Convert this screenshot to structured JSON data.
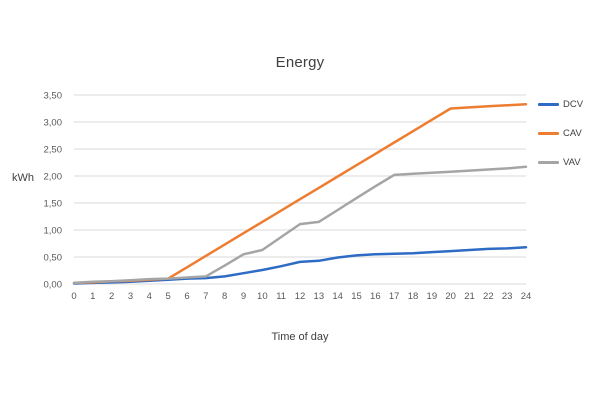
{
  "chart": {
    "title": "Energy",
    "y_axis_label": "kWh",
    "x_axis_label": "Time of day"
  },
  "chart_data": {
    "type": "line",
    "title": "Energy",
    "xlabel": "Time of day",
    "ylabel": "kWh",
    "xlim": [
      0,
      24
    ],
    "ylim": [
      0,
      3.5
    ],
    "grid": "horizontal",
    "legend_position": "right",
    "gridline_color": "#D9D9D9",
    "tick_label_color": "#595959",
    "x": [
      0,
      1,
      2,
      3,
      4,
      5,
      6,
      7,
      8,
      9,
      10,
      11,
      12,
      13,
      14,
      15,
      16,
      17,
      18,
      19,
      20,
      21,
      22,
      23,
      24
    ],
    "x_tick_labels": [
      "0",
      "1",
      "2",
      "3",
      "4",
      "5",
      "6",
      "7",
      "8",
      "9",
      "10",
      "11",
      "12",
      "13",
      "14",
      "15",
      "16",
      "17",
      "18",
      "19",
      "20",
      "21",
      "22",
      "23",
      "24"
    ],
    "y_ticks": [
      0,
      0.5,
      1.0,
      1.5,
      2.0,
      2.5,
      3.0,
      3.5
    ],
    "y_tick_labels": [
      "0,00",
      "0,50",
      "1,00",
      "1,50",
      "2,00",
      "2,50",
      "3,00",
      "3,50"
    ],
    "series": [
      {
        "name": "DCV",
        "color": "#2E6BC4",
        "values": [
          0.01,
          0.02,
          0.03,
          0.04,
          0.06,
          0.08,
          0.1,
          0.11,
          0.14,
          0.2,
          0.26,
          0.33,
          0.41,
          0.43,
          0.49,
          0.53,
          0.55,
          0.56,
          0.57,
          0.59,
          0.61,
          0.63,
          0.65,
          0.66,
          0.68
        ]
      },
      {
        "name": "CAV",
        "color": "#ED7D31",
        "values": [
          0.02,
          0.03,
          0.05,
          0.06,
          0.08,
          0.1,
          0.31,
          0.52,
          0.73,
          0.94,
          1.15,
          1.36,
          1.57,
          1.78,
          1.99,
          2.2,
          2.41,
          2.62,
          2.83,
          3.04,
          3.25,
          3.27,
          3.29,
          3.31,
          3.33
        ]
      },
      {
        "name": "VAV",
        "color": "#A5A5A5",
        "values": [
          0.02,
          0.04,
          0.05,
          0.07,
          0.09,
          0.1,
          0.12,
          0.14,
          0.34,
          0.55,
          0.63,
          0.87,
          1.11,
          1.15,
          1.37,
          1.59,
          1.81,
          2.02,
          2.04,
          2.06,
          2.08,
          2.1,
          2.12,
          2.14,
          2.17
        ]
      }
    ]
  }
}
